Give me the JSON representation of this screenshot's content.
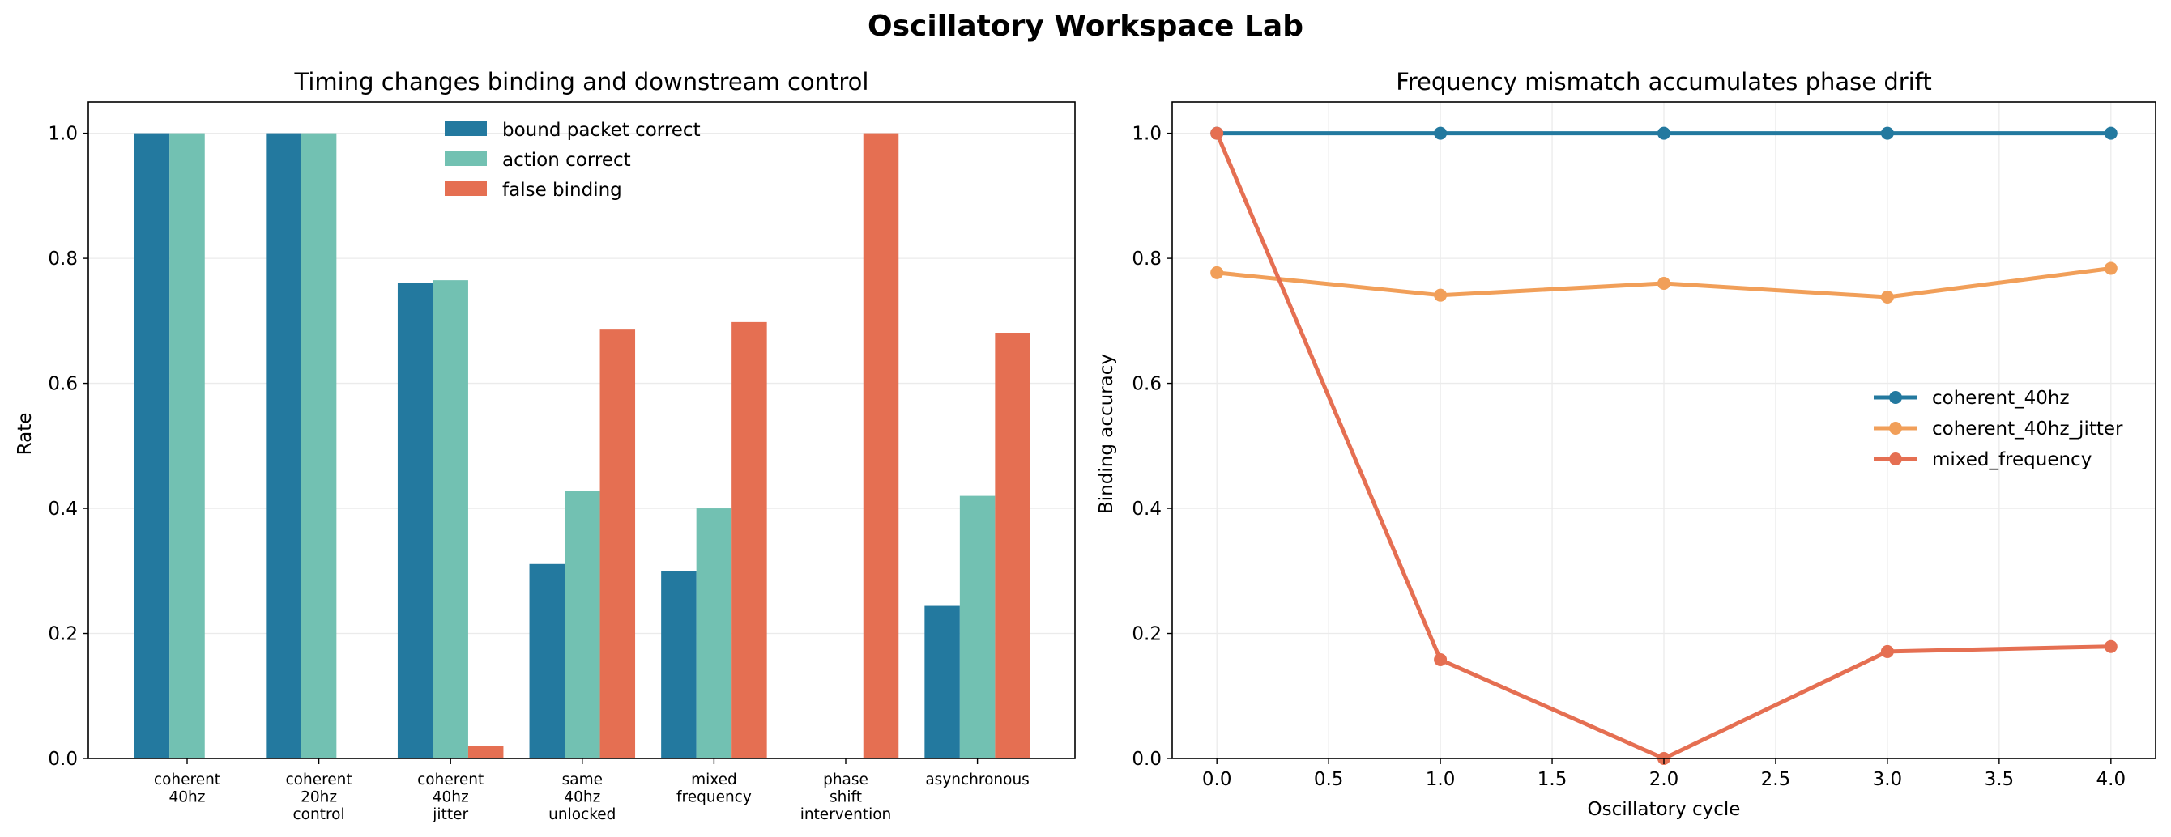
{
  "figure": {
    "title": "Oscillatory Workspace Lab"
  },
  "chart_data": [
    {
      "type": "bar",
      "title": "Timing changes binding and downstream control",
      "xlabel": "",
      "ylabel": "Rate",
      "ylim": [
        0,
        1.05
      ],
      "yticks": [
        "0.0",
        "0.2",
        "0.4",
        "0.6",
        "0.8",
        "1.0"
      ],
      "grid": "y",
      "legend_position": "top-center",
      "categories": [
        [
          "coherent",
          "40hz"
        ],
        [
          "coherent",
          "20hz",
          "control"
        ],
        [
          "coherent",
          "40hz",
          "jitter"
        ],
        [
          "same",
          "40hz",
          "unlocked"
        ],
        [
          "mixed",
          "frequency"
        ],
        [
          "phase",
          "shift",
          "intervention"
        ],
        [
          "asynchronous"
        ]
      ],
      "series": [
        {
          "name": "bound packet correct",
          "color": "#23799f",
          "values": [
            1.0,
            1.0,
            0.76,
            0.311,
            0.3,
            0.0,
            0.244
          ]
        },
        {
          "name": "action correct",
          "color": "#72c1b2",
          "values": [
            1.0,
            1.0,
            0.765,
            0.428,
            0.4,
            0.0,
            0.42
          ]
        },
        {
          "name": "false binding",
          "color": "#e56f52",
          "values": [
            0.0,
            0.0,
            0.02,
            0.686,
            0.698,
            1.0,
            0.681
          ]
        }
      ]
    },
    {
      "type": "line",
      "title": "Frequency mismatch accumulates phase drift",
      "xlabel": "Oscillatory cycle",
      "ylabel": "Binding accuracy",
      "xlim": [
        -0.2,
        4.2
      ],
      "ylim": [
        0,
        1.05
      ],
      "xticks": [
        "0.0",
        "0.5",
        "1.0",
        "1.5",
        "2.0",
        "2.5",
        "3.0",
        "3.5",
        "4.0"
      ],
      "yticks": [
        "0.0",
        "0.2",
        "0.4",
        "0.6",
        "0.8",
        "1.0"
      ],
      "grid": "both",
      "legend_position": "center-right",
      "x": [
        0,
        1,
        2,
        3,
        4
      ],
      "series": [
        {
          "name": "coherent_40hz",
          "color": "#23799f",
          "values": [
            1.0,
            1.0,
            1.0,
            1.0,
            1.0
          ]
        },
        {
          "name": "coherent_40hz_jitter",
          "color": "#f19f59",
          "values": [
            0.777,
            0.741,
            0.76,
            0.738,
            0.784
          ]
        },
        {
          "name": "mixed_frequency",
          "color": "#e56f52",
          "values": [
            1.0,
            0.158,
            0.0,
            0.171,
            0.179
          ]
        }
      ]
    }
  ]
}
